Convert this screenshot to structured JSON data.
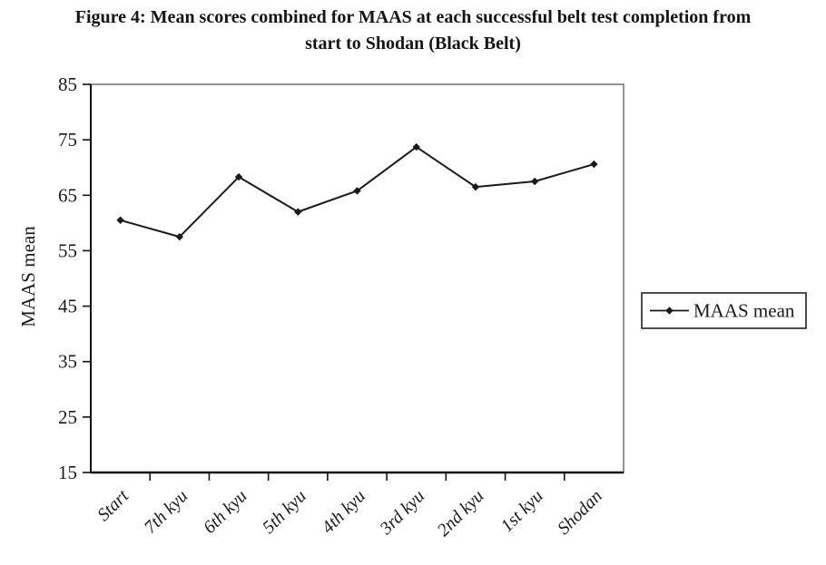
{
  "title": {
    "line1": "Figure 4: Mean scores combined for MAAS at each successful belt test completion from",
    "line2": "start to Shodan (Black Belt)"
  },
  "chart_data": {
    "type": "line",
    "title": "Figure 4: Mean scores combined for MAAS at each successful belt test completion from start to Shodan (Black Belt)",
    "categories": [
      "Start",
      "7th kyu",
      "6th kyu",
      "5th kyu",
      "4th kyu",
      "3rd kyu",
      "2nd kyu",
      "1st kyu",
      "Shodan"
    ],
    "series": [
      {
        "name": "MAAS mean",
        "values": [
          60.5,
          57.5,
          68.3,
          62.0,
          65.8,
          73.7,
          66.5,
          67.5,
          70.6
        ]
      }
    ],
    "xlabel": "",
    "ylabel": "MAAS mean",
    "ylim": [
      15,
      85
    ],
    "yticks": [
      85,
      75,
      65,
      55,
      45,
      35,
      25,
      15
    ],
    "grid": false,
    "marker": "diamond",
    "legend": {
      "position": "right",
      "entries": [
        "MAAS mean"
      ]
    },
    "colors": {
      "line": "#1a1a1a",
      "axis": "#111111",
      "plot_border": "#7a7a7a",
      "background": "#ffffff"
    }
  }
}
